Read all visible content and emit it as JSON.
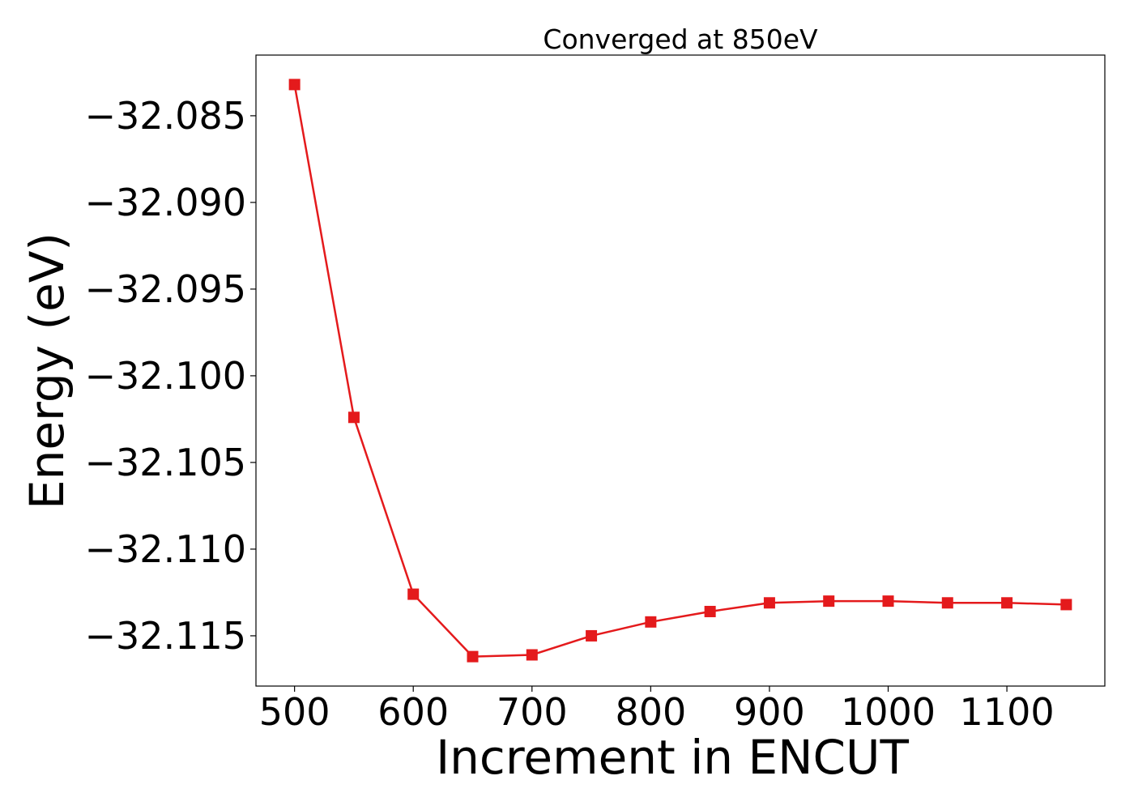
{
  "chart_data": {
    "type": "line",
    "title": "Converged at 850eV",
    "xlabel": "Increment in ENCUT",
    "ylabel": "Energy (eV)",
    "xlim": [
      467.5,
      1182.5
    ],
    "ylim": [
      -32.1179,
      -32.0815
    ],
    "x_ticks": [
      500,
      600,
      700,
      800,
      900,
      1000,
      1100
    ],
    "x_tick_labels": [
      "500",
      "600",
      "700",
      "800",
      "900",
      "1000",
      "1100"
    ],
    "y_ticks": [
      -32.085,
      -32.09,
      -32.095,
      -32.1,
      -32.105,
      -32.11,
      -32.115
    ],
    "y_tick_labels": [
      "−32.085",
      "−32.090",
      "−32.095",
      "−32.100",
      "−32.105",
      "−32.110",
      "−32.115"
    ],
    "grid": false,
    "series": [
      {
        "color": "#e41a1c",
        "marker": "square",
        "x": [
          500,
          550,
          600,
          650,
          700,
          750,
          800,
          850,
          900,
          950,
          1000,
          1050,
          1100,
          1150
        ],
        "y": [
          -32.0832,
          -32.1024,
          -32.1126,
          -32.1162,
          -32.1161,
          -32.115,
          -32.1142,
          -32.1136,
          -32.1131,
          -32.113,
          -32.113,
          -32.1131,
          -32.1131,
          -32.1132
        ]
      }
    ]
  }
}
